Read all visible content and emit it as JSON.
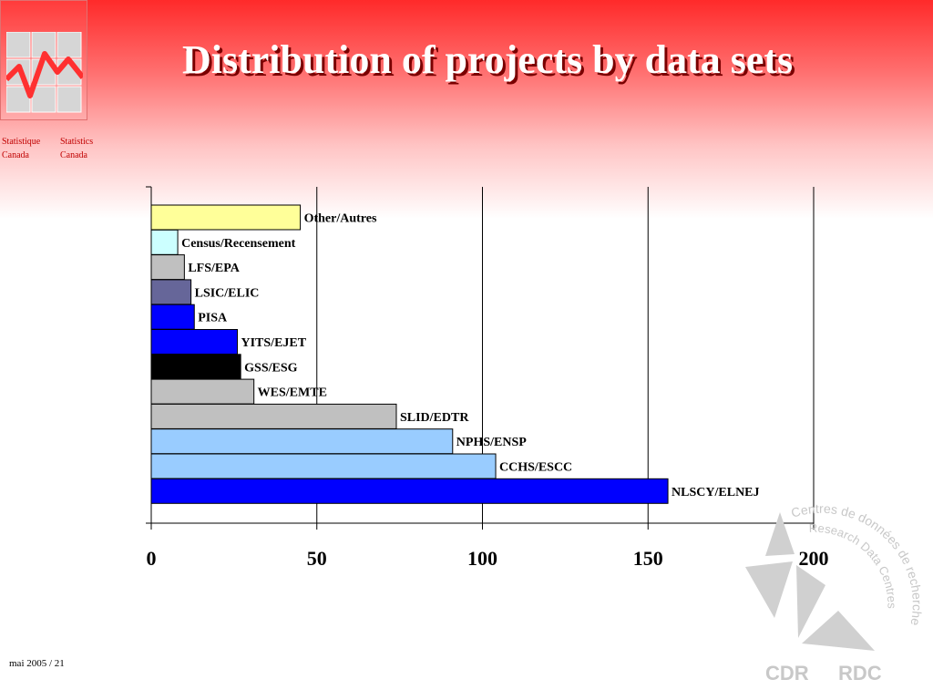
{
  "header": {
    "title": "Distribution of projects by data sets"
  },
  "org": {
    "fr_line1": "Statistique",
    "fr_line2": "Canada",
    "en_line1": "Statistics",
    "en_line2": "Canada"
  },
  "footer": {
    "text": "mai 2005 / 21"
  },
  "rdc_logo": {
    "arc_text_fr": "Centres de données de recherche",
    "arc_text_en": "Research Data Centres",
    "abbr_en": "CDR",
    "abbr_fr": "RDC"
  },
  "colors": {
    "title_text": "#ffffff",
    "title_shadow": "#7a0000",
    "header_red": "#ff2a2a",
    "org_text": "#c00000",
    "logo_gray": "#cfcfcf"
  },
  "chart_data": {
    "type": "bar",
    "orientation": "horizontal",
    "categories": [
      "Other/Autres",
      "Census/Recensement",
      "LFS/EPA",
      "LSIC/ELIC",
      "PISA",
      "YITS/EJET",
      "GSS/ESG",
      "WES/EMTE",
      "SLID/EDTR",
      "NPHS/ENSP",
      "CCHS/ESCC",
      "NLSCY/ELNEJ"
    ],
    "values": [
      45,
      8,
      10,
      12,
      13,
      26,
      27,
      31,
      74,
      91,
      104,
      156
    ],
    "bar_colors": [
      "#ffff99",
      "#ccffff",
      "#c0c0c0",
      "#666699",
      "#0000ff",
      "#0000ff",
      "#000000",
      "#c0c0c0",
      "#c0c0c0",
      "#99ccff",
      "#99ccff",
      "#0000ff"
    ],
    "xlim": [
      0,
      200
    ],
    "xticks": [
      0,
      50,
      100,
      150,
      200
    ],
    "grid": true,
    "legend": "none",
    "data_labels": "category name at bar end"
  }
}
